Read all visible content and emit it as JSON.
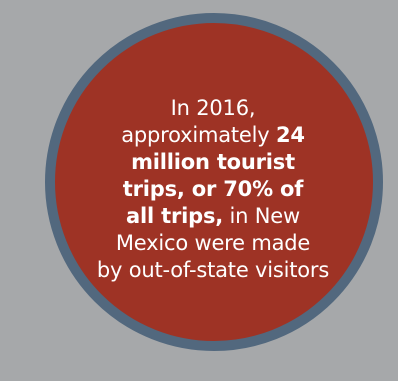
{
  "infographic": {
    "line1": "In 2016,",
    "line2_lead": "approximately ",
    "line2_bold": "24",
    "line3_bold": "million tourist",
    "line4_bold": "trips, or 70% of",
    "line5_bold": "all trips,",
    "line5_tail": " in New",
    "line6": "Mexico were made",
    "line7": "by out-of-state visitors"
  },
  "colors": {
    "background": "#a6a8aa",
    "circle_fill": "#9e3325",
    "circle_border": "#52687e",
    "text": "#ffffff"
  }
}
